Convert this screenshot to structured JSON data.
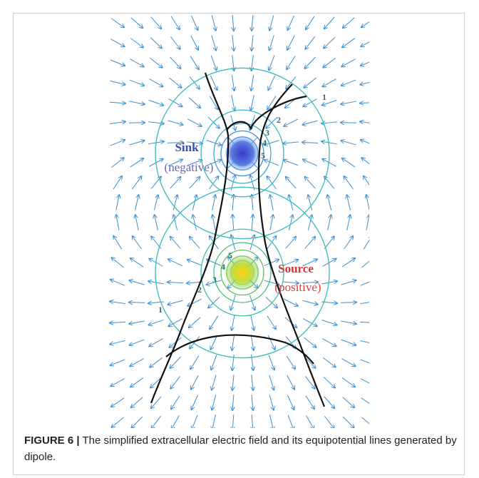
{
  "figure": {
    "sink_label": "Sink",
    "sink_sublabel": "(negative)",
    "source_label": "Source",
    "source_sublabel": "(positive)",
    "sink_contour_labels": [
      "1",
      "2",
      "3",
      "4",
      "5"
    ],
    "source_contour_labels": [
      "1",
      "2",
      "3",
      "4",
      "5"
    ]
  },
  "caption": {
    "label": "FIGURE 6 |",
    "text": "The simplified extracellular electric field and its equipotential lines generated by dipole."
  }
}
